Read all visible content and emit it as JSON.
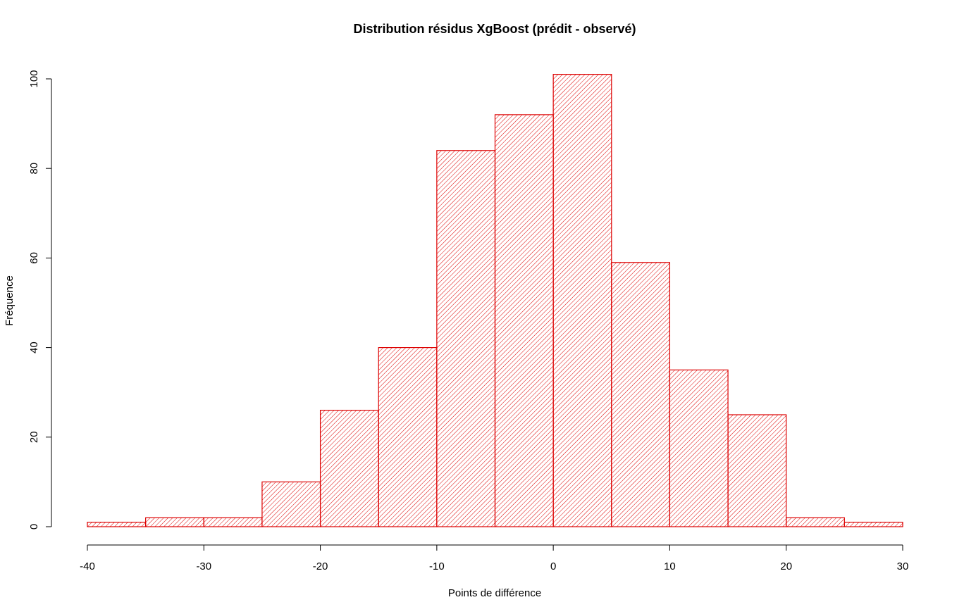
{
  "chart_data": {
    "type": "bar",
    "subtype": "histogram",
    "title": "Distribution résidus XgBoost (prédit - observé)",
    "xlabel": "Points de différence",
    "ylabel": "Fréquence",
    "bins": [
      {
        "from": -40,
        "to": -35,
        "count": 1
      },
      {
        "from": -35,
        "to": -30,
        "count": 2
      },
      {
        "from": -30,
        "to": -25,
        "count": 2
      },
      {
        "from": -25,
        "to": -20,
        "count": 10
      },
      {
        "from": -20,
        "to": -15,
        "count": 26
      },
      {
        "from": -15,
        "to": -10,
        "count": 40
      },
      {
        "from": -10,
        "to": -5,
        "count": 84
      },
      {
        "from": -5,
        "to": 0,
        "count": 92
      },
      {
        "from": 0,
        "to": 5,
        "count": 101
      },
      {
        "from": 5,
        "to": 10,
        "count": 59
      },
      {
        "from": 10,
        "to": 15,
        "count": 35
      },
      {
        "from": 15,
        "to": 20,
        "count": 25
      },
      {
        "from": 20,
        "to": 25,
        "count": 2
      },
      {
        "from": 25,
        "to": 30,
        "count": 1
      }
    ],
    "xlim": [
      -40,
      30
    ],
    "ylim": [
      0,
      100
    ],
    "xticks": [
      -40,
      -30,
      -20,
      -10,
      0,
      10,
      20,
      30
    ],
    "xtick_labels": [
      "-40",
      "-30",
      "-20",
      "-10",
      "0",
      "10",
      "20",
      "30"
    ],
    "yticks": [
      0,
      20,
      40,
      60,
      80,
      100
    ],
    "ytick_labels": [
      "0",
      "20",
      "40",
      "60",
      "80",
      "100"
    ],
    "grid": false,
    "bar_color": "#dd0000",
    "fill": "diagonal-hatch"
  }
}
